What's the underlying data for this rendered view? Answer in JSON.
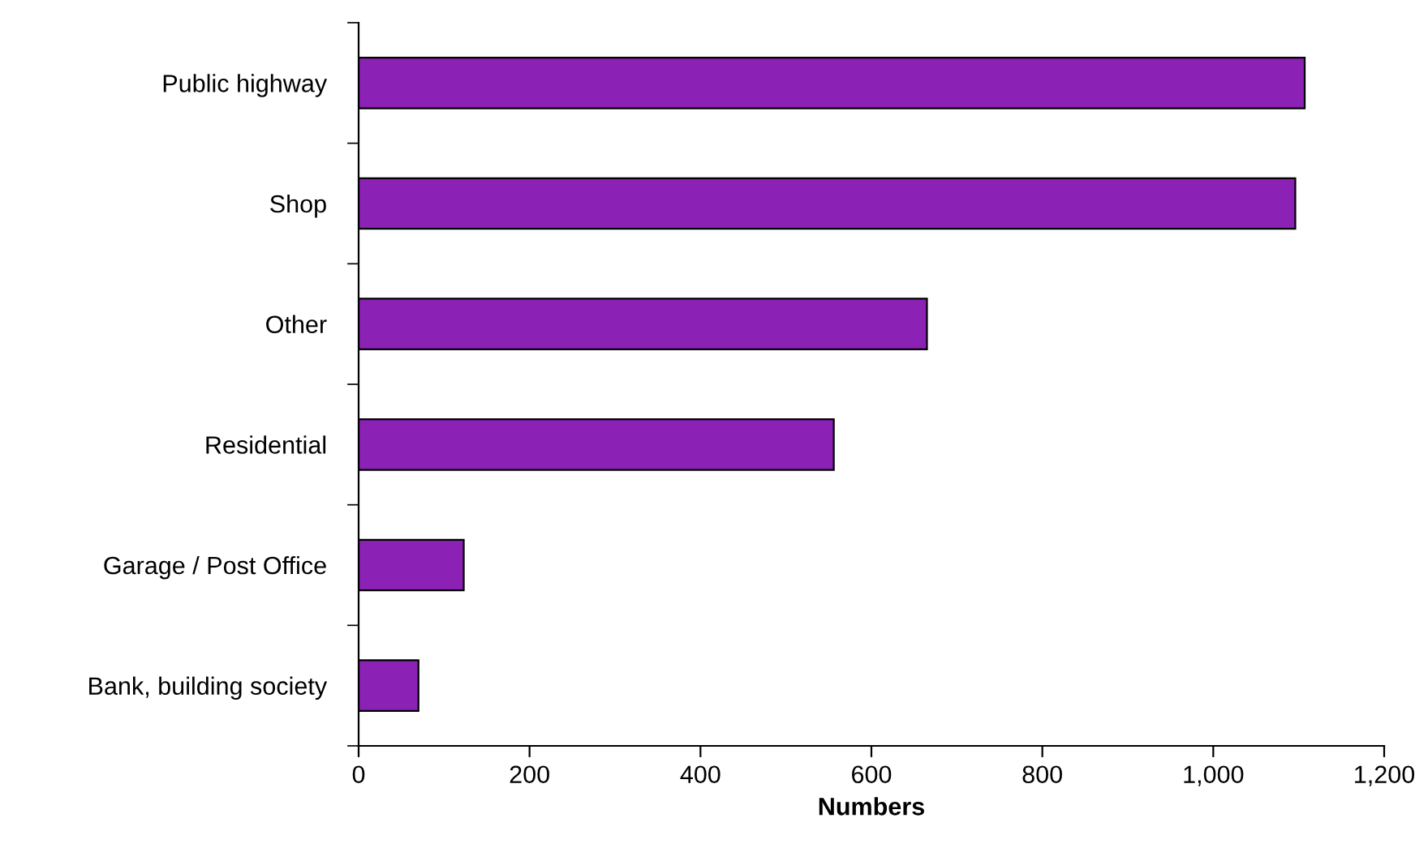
{
  "chart_data": {
    "type": "bar",
    "orientation": "horizontal",
    "xlabel": "Numbers",
    "categories": [
      "Public highway",
      "Shop",
      "Other",
      "Residential",
      "Garage / Post Office",
      "Bank, building society"
    ],
    "values": [
      1107,
      1096,
      665,
      556,
      123,
      70
    ],
    "color": "#8b22b5",
    "xlim": [
      0,
      1200
    ],
    "xticks": [
      0,
      200,
      400,
      600,
      800,
      {
        "value": 1000,
        "label": "1,000"
      },
      {
        "value": 1200,
        "label": "1,200"
      }
    ],
    "grid": false,
    "legend": false
  }
}
